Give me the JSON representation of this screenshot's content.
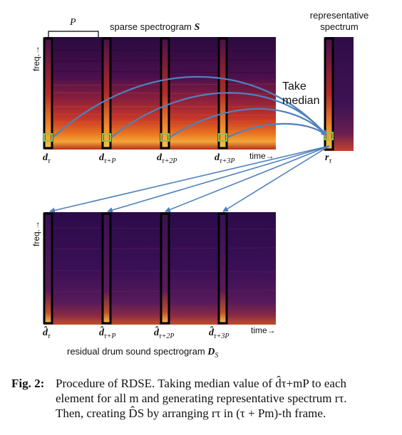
{
  "top_panel": {
    "title": "sparse spectrogram",
    "title_symbol": "S",
    "period_label": "P",
    "y_axis_label": "freq.→",
    "x_axis_label": "time→",
    "frame_labels": [
      {
        "main": "d",
        "sub": "τ"
      },
      {
        "main": "d",
        "sub": "τ+P"
      },
      {
        "main": "d",
        "sub": "τ+2P"
      },
      {
        "main": "d",
        "sub": "τ+3P"
      }
    ]
  },
  "rep_panel": {
    "title_line1": "representative",
    "title_line2": "spectrum",
    "label": {
      "main": "r",
      "sub": "τ"
    }
  },
  "take_median_line1": "Take",
  "take_median_line2": "median",
  "bottom_panel": {
    "y_axis_label": "freq.→",
    "x_axis_label": "time→",
    "title": "residual drum sound spectrogram",
    "title_symbol": "D",
    "title_symbol_sub": "S",
    "frame_labels": [
      {
        "main": "d̂",
        "sub": "τ"
      },
      {
        "main": "d̂",
        "sub": "τ+P"
      },
      {
        "main": "d̂",
        "sub": "τ+2P"
      },
      {
        "main": "d̂",
        "sub": "τ+3P"
      }
    ]
  },
  "caption": {
    "figure_label": "Fig. 2:",
    "line1": "Procedure of RDSE. Taking median value of d̂τ+mP to each",
    "line2": "element for all m and generating representative spectrum rτ.",
    "line3": "Then, creating D̂S by arranging rτ in (τ + Pm)-th frame."
  },
  "colors": {
    "arrow": "#4f81bd",
    "frame_box": "#000000",
    "bin_box": "#8bc34a"
  }
}
